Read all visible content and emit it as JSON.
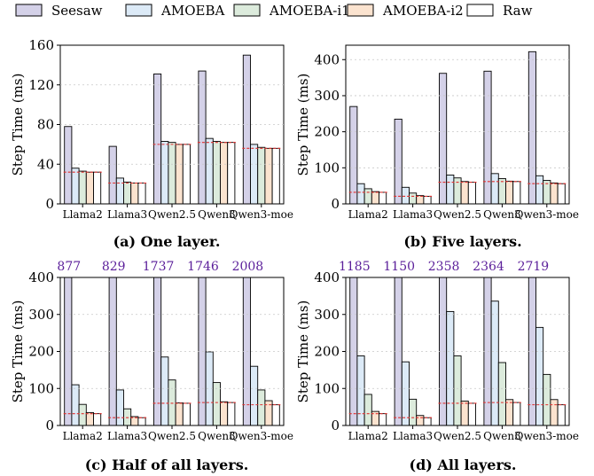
{
  "legend": [
    {
      "name": "Seesaw",
      "color": "#d4d1e8"
    },
    {
      "name": "AMOEBA",
      "color": "#dceaf7"
    },
    {
      "name": "AMOEBA-i1",
      "color": "#dcebdc"
    },
    {
      "name": "AMOEBA-i2",
      "color": "#fbe3cf"
    },
    {
      "name": "Raw",
      "color": "#ffffff"
    }
  ],
  "overflow_color": "#5b1f9a",
  "baseline_color": "#e0302f",
  "chart_data": [
    {
      "type": "bar",
      "caption": "(a) One layer.",
      "ylabel": "Step Time (ms)",
      "ylim": [
        0,
        160
      ],
      "yticks": [
        0,
        40,
        80,
        120,
        160
      ],
      "categories": [
        "Llama2",
        "Llama3",
        "Qwen2.5",
        "Qwen3",
        "Qwen3-moe"
      ],
      "series": [
        {
          "name": "Seesaw",
          "values": [
            78,
            58,
            131,
            134,
            150
          ]
        },
        {
          "name": "AMOEBA",
          "values": [
            36,
            26,
            63,
            66,
            60
          ]
        },
        {
          "name": "AMOEBA-i1",
          "values": [
            33,
            22,
            62,
            63,
            57
          ]
        },
        {
          "name": "AMOEBA-i2",
          "values": [
            32,
            21,
            60,
            62,
            56
          ]
        },
        {
          "name": "Raw",
          "values": [
            32,
            21,
            60,
            62,
            56
          ]
        }
      ],
      "baseline": [
        32,
        21,
        60,
        62,
        56
      ],
      "overflow_labels": []
    },
    {
      "type": "bar",
      "caption": "(b) Five layers.",
      "ylabel": "Step Time (ms)",
      "ylim": [
        0,
        440
      ],
      "yticks": [
        0,
        100,
        200,
        300,
        400
      ],
      "categories": [
        "Llama2",
        "Llama3",
        "Qwen2.5",
        "Qwen3",
        "Qwen3-moe"
      ],
      "series": [
        {
          "name": "Seesaw",
          "values": [
            270,
            235,
            362,
            368,
            422
          ]
        },
        {
          "name": "AMOEBA",
          "values": [
            56,
            46,
            80,
            84,
            78
          ]
        },
        {
          "name": "AMOEBA-i1",
          "values": [
            42,
            30,
            72,
            70,
            65
          ]
        },
        {
          "name": "AMOEBA-i2",
          "values": [
            34,
            23,
            62,
            63,
            58
          ]
        },
        {
          "name": "Raw",
          "values": [
            32,
            21,
            60,
            62,
            56
          ]
        }
      ],
      "baseline": [
        32,
        21,
        60,
        62,
        56
      ],
      "overflow_labels": []
    },
    {
      "type": "bar",
      "caption": "(c) Half of all layers.",
      "ylabel": "Step Time (ms)",
      "ylim": [
        0,
        400
      ],
      "yticks": [
        0,
        100,
        200,
        300,
        400
      ],
      "categories": [
        "Llama2",
        "Llama3",
        "Qwen2.5",
        "Qwen3",
        "Qwen3-moe"
      ],
      "series": [
        {
          "name": "Seesaw",
          "values": [
            877,
            829,
            1737,
            1746,
            2008
          ]
        },
        {
          "name": "AMOEBA",
          "values": [
            110,
            96,
            185,
            199,
            160
          ]
        },
        {
          "name": "AMOEBA-i1",
          "values": [
            57,
            45,
            123,
            116,
            96
          ]
        },
        {
          "name": "AMOEBA-i2",
          "values": [
            35,
            24,
            61,
            64,
            67
          ]
        },
        {
          "name": "Raw",
          "values": [
            32,
            21,
            60,
            62,
            56
          ]
        }
      ],
      "baseline": [
        32,
        21,
        60,
        62,
        56
      ],
      "overflow_labels": [
        "877",
        "829",
        "1737",
        "1746",
        "2008"
      ]
    },
    {
      "type": "bar",
      "caption": "(d) All layers.",
      "ylabel": "Step Time (ms)",
      "ylim": [
        0,
        400
      ],
      "yticks": [
        0,
        100,
        200,
        300,
        400
      ],
      "categories": [
        "Llama2",
        "Llama3",
        "Qwen2.5",
        "Qwen3",
        "Qwen3-moe"
      ],
      "series": [
        {
          "name": "Seesaw",
          "values": [
            1185,
            1150,
            2358,
            2364,
            2719
          ]
        },
        {
          "name": "AMOEBA",
          "values": [
            188,
            172,
            308,
            336,
            265
          ]
        },
        {
          "name": "AMOEBA-i1",
          "values": [
            84,
            71,
            188,
            170,
            138
          ]
        },
        {
          "name": "AMOEBA-i2",
          "values": [
            38,
            27,
            66,
            70,
            70
          ]
        },
        {
          "name": "Raw",
          "values": [
            32,
            21,
            60,
            62,
            56
          ]
        }
      ],
      "baseline": [
        32,
        21,
        60,
        62,
        56
      ],
      "overflow_labels": [
        "1185",
        "1150",
        "2358",
        "2364",
        "2719"
      ]
    }
  ]
}
